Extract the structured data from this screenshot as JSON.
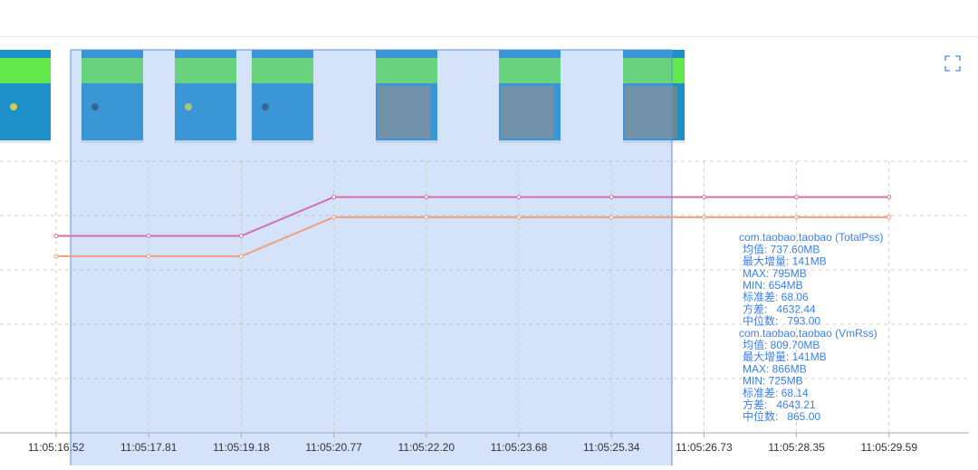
{
  "chart_data": {
    "type": "line",
    "categories": [
      "11:05:16.52",
      "11:05:17.81",
      "11:05:19.18",
      "11:05:20.77",
      "11:05:22.20",
      "11:05:23.68",
      "11:05:25.34",
      "11:05:26.73",
      "11:05:28.35",
      "11:05:29.59"
    ],
    "series": [
      {
        "name": "com.taobao.taobao (TotalPss)",
        "color": "#d66fa8",
        "values": [
          654,
          654,
          654,
          795,
          795,
          795,
          795,
          795,
          795,
          795
        ],
        "stats": [
          "均值: 737.60MB",
          "最大增量: 141MB",
          "MAX: 795MB",
          "MIN: 654MB",
          "标准差: 68.06",
          "方差:   4632.44",
          "中位数:   793.00"
        ]
      },
      {
        "name": "com.taobao.taobao (VmRss)",
        "color": "#f0a07a",
        "axis": "y2",
        "values": [
          725,
          725,
          725,
          866,
          866,
          866,
          866,
          866,
          866,
          866
        ],
        "stats": [
          "均值: 809.70MB",
          "最大增量: 141MB",
          "MAX: 866MB",
          "MIN: 725MB",
          "标准差: 68.14",
          "方差:   4643.21",
          "中位数:   865.00"
        ]
      }
    ],
    "ylim": [
      -60,
      925
    ],
    "y2lim": [
      85,
      1069
    ]
  }
}
